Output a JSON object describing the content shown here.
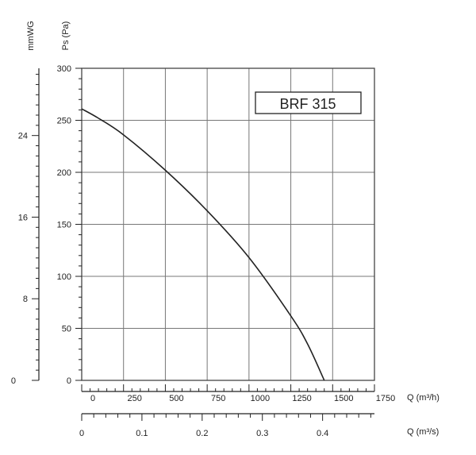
{
  "chart_data": {
    "type": "line",
    "title": "BRF 315",
    "y_label_mmwg": "mmWG",
    "y_label_pa": "Ps (Pa)",
    "x_label_m3h": "Q (m³/h)",
    "x_label_m3s": "Q (m³/s)",
    "pa_ticks": [
      "0",
      "50",
      "100",
      "150",
      "200",
      "250",
      "300"
    ],
    "mmwg_ticks": [
      "0",
      "8",
      "16",
      "24"
    ],
    "m3h_ticks": [
      "0",
      "250",
      "500",
      "750",
      "1000",
      "1250",
      "1500",
      "1750"
    ],
    "m3s_ticks": [
      "0",
      "0.1",
      "0.2",
      "0.3",
      "0.4"
    ],
    "xlim_m3h": [
      0,
      1750
    ],
    "ylim_pa": [
      0,
      300
    ],
    "grid": true,
    "series": [
      {
        "x": [
          0,
          100,
          250,
          500,
          750,
          1000,
          1250,
          1350,
          1450
        ],
        "y": [
          261,
          252,
          236,
          202,
          163,
          118,
          62,
          35,
          0
        ]
      }
    ],
    "colors": {
      "curve": "#222222",
      "grid": "#777777",
      "axis": "#222222",
      "frame": "#444444"
    }
  }
}
